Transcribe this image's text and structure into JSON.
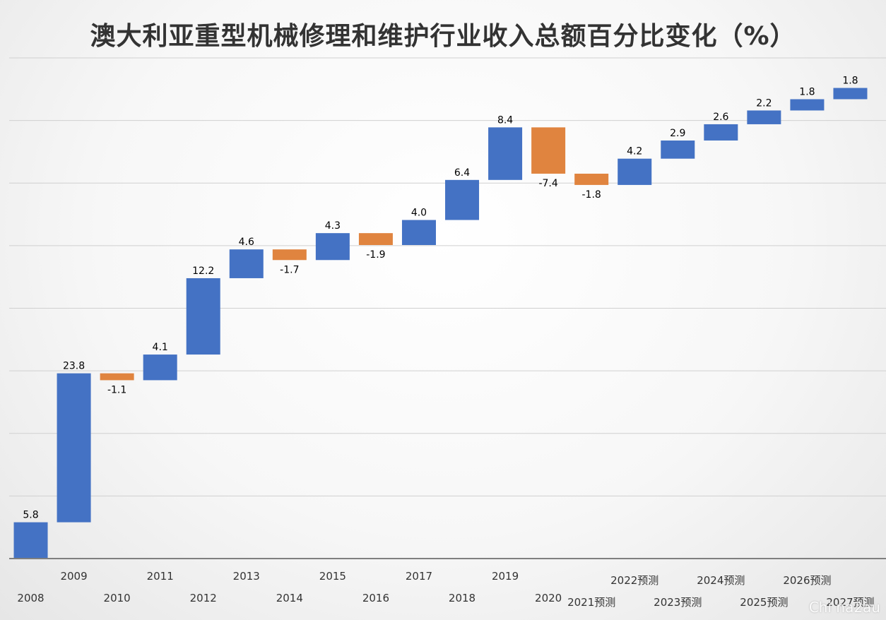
{
  "chart_data": {
    "type": "bar",
    "subtype": "waterfall",
    "title": "澳大利亚重型机械修理和维护行业收入总额百分比变化（%）",
    "categories": [
      "2008",
      "2009",
      "2010",
      "2011",
      "2012",
      "2013",
      "2014",
      "2015",
      "2016",
      "2017",
      "2018",
      "2019",
      "2020",
      "2021预测",
      "2022预测",
      "2023预测",
      "2024预测",
      "2025预测",
      "2026预测",
      "2027预测"
    ],
    "values": [
      5.8,
      23.8,
      -1.1,
      4.1,
      12.2,
      4.6,
      -1.7,
      4.3,
      -1.9,
      4.0,
      6.4,
      8.4,
      -7.4,
      -1.8,
      4.2,
      2.9,
      2.6,
      2.2,
      1.8,
      1.8
    ],
    "data_labels": [
      "5.8",
      "23.8",
      "-1.1",
      "4.1",
      "12.2",
      "4.6",
      "-1.7",
      "4.3",
      "-1.9",
      "4.0",
      "6.4",
      "8.4",
      "-7.4",
      "-1.8",
      "4.2",
      "2.9",
      "2.6",
      "2.2",
      "1.8",
      "1.8"
    ],
    "colors": {
      "increase": "#4472C4",
      "decrease": "#E0843F"
    },
    "ylim": [
      0,
      80
    ],
    "grid": true,
    "xlabel": "",
    "ylabel": "",
    "legend": "none"
  },
  "watermark": "Chi na2au"
}
